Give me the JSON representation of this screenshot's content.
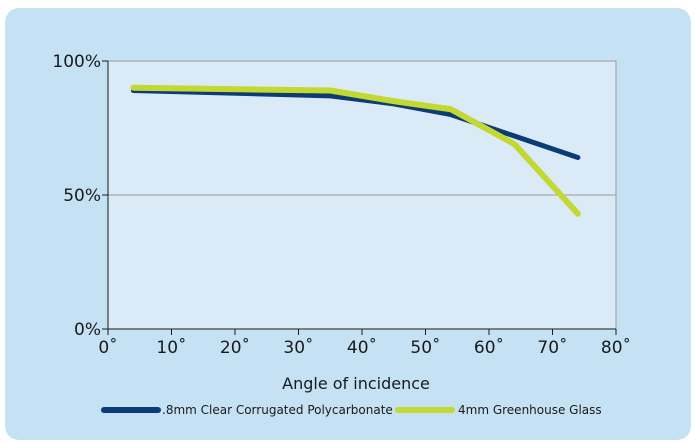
{
  "chart_data": {
    "type": "line",
    "title": "",
    "xlabel": "Angle of incidence",
    "ylabel": "",
    "xlim": [
      0,
      80
    ],
    "ylim": [
      0,
      100
    ],
    "x_ticks": [
      "0˚",
      "10˚",
      "20˚",
      "30˚",
      "40˚",
      "50˚",
      "60˚",
      "70˚",
      "80˚"
    ],
    "y_ticks": [
      "0%",
      "50%",
      "100%"
    ],
    "grid": "horizontal",
    "legend_position": "bottom",
    "series": [
      {
        "name": ".8mm Clear Corrugated Polycarbonate",
        "color": "#0c3c78",
        "x": [
          4,
          35,
          45,
          54,
          64,
          74
        ],
        "y": [
          89,
          87,
          84,
          80,
          72,
          64
        ]
      },
      {
        "name": "4mm Greenhouse Glass",
        "color": "#c3d830",
        "x": [
          4,
          35,
          45,
          54,
          64,
          74
        ],
        "y": [
          90,
          89,
          85,
          82,
          69,
          43
        ]
      }
    ]
  },
  "colors": {
    "background": "#c5e1f4",
    "plot_area": "#dbeaf7",
    "axis": "#1a1a1a",
    "grid": "#999999"
  }
}
